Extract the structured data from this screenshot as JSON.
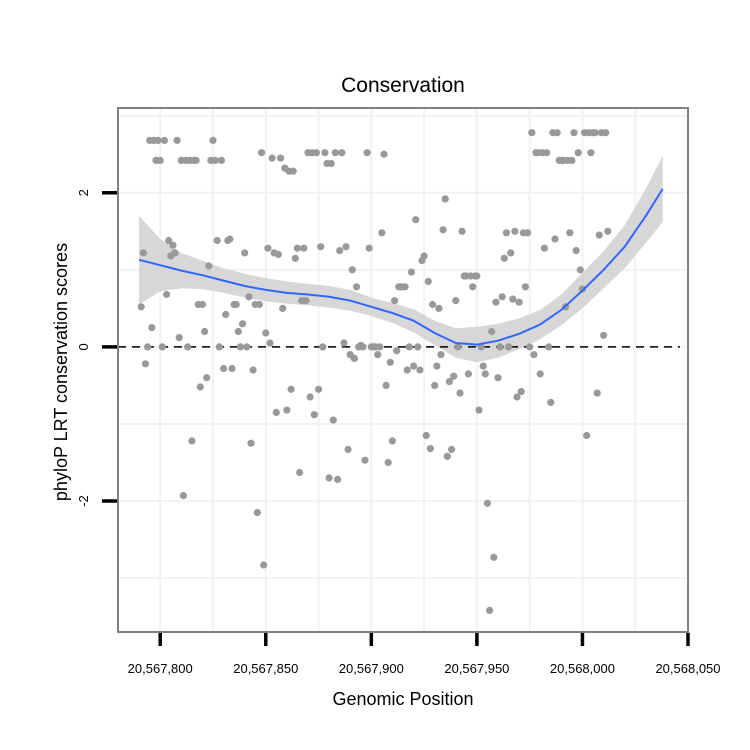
{
  "chart_data": {
    "type": "scatter",
    "title": "Conservation",
    "xlabel": "Genomic Position",
    "ylabel": "phyloP LRT conservation scores",
    "xlim": [
      20567780,
      20568050
    ],
    "ylim": [
      -3.7,
      3.1
    ],
    "x_ticks": [
      20567800,
      20567850,
      20567900,
      20567950,
      20568000,
      20568050
    ],
    "x_tick_labels": [
      "20,567,800",
      "20,567,850",
      "20,567,900",
      "20,567,950",
      "20,568,000",
      "20,568,050"
    ],
    "y_ticks": [
      -2,
      0,
      2
    ],
    "y_tick_labels": [
      "-2",
      "0",
      "2"
    ],
    "reference_line": {
      "y": 0,
      "style": "dashed"
    },
    "grid": true,
    "colors": {
      "points": "#999999",
      "smooth": "#3366ff",
      "band": "#d3d3d3",
      "grid": "#f2f2f2",
      "frame": "#808080"
    },
    "series": [
      {
        "type": "points",
        "points": [
          [
            20567791,
            0.52
          ],
          [
            20567792,
            1.22
          ],
          [
            20567793,
            -0.22
          ],
          [
            20567794,
            0.0
          ],
          [
            20567795,
            2.68
          ],
          [
            20567796,
            0.25
          ],
          [
            20567797,
            2.68
          ],
          [
            20567798,
            2.42
          ],
          [
            20567799,
            2.68
          ],
          [
            20567800,
            2.42
          ],
          [
            20567801,
            0.0
          ],
          [
            20567802,
            2.68
          ],
          [
            20567803,
            0.68
          ],
          [
            20567804,
            1.38
          ],
          [
            20567805,
            1.18
          ],
          [
            20567806,
            1.32
          ],
          [
            20567807,
            1.22
          ],
          [
            20567808,
            2.68
          ],
          [
            20567809,
            0.12
          ],
          [
            20567810,
            2.42
          ],
          [
            20567811,
            -1.93
          ],
          [
            20567812,
            2.42
          ],
          [
            20567813,
            0.0
          ],
          [
            20567814,
            2.42
          ],
          [
            20567815,
            -1.22
          ],
          [
            20567816,
            2.42
          ],
          [
            20567817,
            2.42
          ],
          [
            20567818,
            0.55
          ],
          [
            20567819,
            -0.52
          ],
          [
            20567820,
            0.55
          ],
          [
            20567821,
            0.2
          ],
          [
            20567822,
            -0.4
          ],
          [
            20567823,
            1.05
          ],
          [
            20567824,
            2.42
          ],
          [
            20567825,
            2.68
          ],
          [
            20567826,
            2.42
          ],
          [
            20567827,
            1.38
          ],
          [
            20567828,
            0.0
          ],
          [
            20567829,
            2.42
          ],
          [
            20567830,
            -0.28
          ],
          [
            20567831,
            0.42
          ],
          [
            20567832,
            1.38
          ],
          [
            20567833,
            1.4
          ],
          [
            20567834,
            -0.28
          ],
          [
            20567835,
            0.55
          ],
          [
            20567836,
            0.55
          ],
          [
            20567837,
            0.2
          ],
          [
            20567838,
            0.0
          ],
          [
            20567839,
            0.3
          ],
          [
            20567840,
            1.22
          ],
          [
            20567841,
            0.0
          ],
          [
            20567842,
            0.65
          ],
          [
            20567843,
            -1.25
          ],
          [
            20567844,
            -0.3
          ],
          [
            20567845,
            0.55
          ],
          [
            20567846,
            -2.15
          ],
          [
            20567847,
            0.55
          ],
          [
            20567848,
            2.52
          ],
          [
            20567849,
            -2.83
          ],
          [
            20567850,
            0.18
          ],
          [
            20567851,
            1.28
          ],
          [
            20567852,
            0.05
          ],
          [
            20567853,
            2.45
          ],
          [
            20567854,
            1.22
          ],
          [
            20567855,
            -0.85
          ],
          [
            20567856,
            1.2
          ],
          [
            20567857,
            2.45
          ],
          [
            20567858,
            0.5
          ],
          [
            20567859,
            2.32
          ],
          [
            20567860,
            -0.82
          ],
          [
            20567861,
            2.28
          ],
          [
            20567862,
            -0.55
          ],
          [
            20567863,
            2.28
          ],
          [
            20567864,
            1.15
          ],
          [
            20567865,
            1.28
          ],
          [
            20567866,
            -1.63
          ],
          [
            20567867,
            0.6
          ],
          [
            20567868,
            1.28
          ],
          [
            20567869,
            0.6
          ],
          [
            20567870,
            2.52
          ],
          [
            20567871,
            -0.65
          ],
          [
            20567872,
            2.52
          ],
          [
            20567873,
            -0.88
          ],
          [
            20567874,
            2.52
          ],
          [
            20567875,
            -0.55
          ],
          [
            20567876,
            1.3
          ],
          [
            20567877,
            0.0
          ],
          [
            20567878,
            2.52
          ],
          [
            20567879,
            2.38
          ],
          [
            20567880,
            -1.7
          ],
          [
            20567881,
            2.38
          ],
          [
            20567882,
            -0.95
          ],
          [
            20567883,
            2.52
          ],
          [
            20567884,
            -1.72
          ],
          [
            20567885,
            1.25
          ],
          [
            20567886,
            2.52
          ],
          [
            20567887,
            0.05
          ],
          [
            20567888,
            1.3
          ],
          [
            20567889,
            -1.33
          ],
          [
            20567890,
            -0.1
          ],
          [
            20567891,
            1.0
          ],
          [
            20567892,
            -0.15
          ],
          [
            20567893,
            0.78
          ],
          [
            20567894,
            0.0
          ],
          [
            20567895,
            0.02
          ],
          [
            20567896,
            0.0
          ],
          [
            20567897,
            -1.47
          ],
          [
            20567898,
            2.52
          ],
          [
            20567899,
            1.28
          ],
          [
            20567900,
            0.0
          ],
          [
            20567901,
            0.0
          ],
          [
            20567902,
            0.0
          ],
          [
            20567903,
            -0.1
          ],
          [
            20567904,
            0.0
          ],
          [
            20567905,
            1.48
          ],
          [
            20567906,
            2.5
          ],
          [
            20567907,
            -0.5
          ],
          [
            20567908,
            -1.5
          ],
          [
            20567909,
            -0.2
          ],
          [
            20567910,
            -1.22
          ],
          [
            20567911,
            0.6
          ],
          [
            20567912,
            -0.05
          ],
          [
            20567913,
            0.78
          ],
          [
            20567914,
            0.78
          ],
          [
            20567915,
            0.78
          ],
          [
            20567916,
            0.78
          ],
          [
            20567917,
            -0.3
          ],
          [
            20567918,
            0.0
          ],
          [
            20567919,
            0.97
          ],
          [
            20567920,
            -0.25
          ],
          [
            20567921,
            1.65
          ],
          [
            20567922,
            0.0
          ],
          [
            20567923,
            -0.3
          ],
          [
            20567924,
            1.12
          ],
          [
            20567925,
            1.18
          ],
          [
            20567926,
            -1.15
          ],
          [
            20567927,
            0.85
          ],
          [
            20567928,
            -1.32
          ],
          [
            20567929,
            0.55
          ],
          [
            20567930,
            -0.5
          ],
          [
            20567931,
            -0.25
          ],
          [
            20567932,
            0.5
          ],
          [
            20567933,
            -0.1
          ],
          [
            20567934,
            1.52
          ],
          [
            20567935,
            1.92
          ],
          [
            20567936,
            -1.42
          ],
          [
            20567937,
            -0.45
          ],
          [
            20567938,
            -1.33
          ],
          [
            20567939,
            -0.38
          ],
          [
            20567940,
            0.6
          ],
          [
            20567941,
            0.0
          ],
          [
            20567942,
            -0.6
          ],
          [
            20567943,
            1.5
          ],
          [
            20567944,
            0.92
          ],
          [
            20567945,
            0.92
          ],
          [
            20567946,
            -0.35
          ],
          [
            20567947,
            0.92
          ],
          [
            20567948,
            0.78
          ],
          [
            20567949,
            0.92
          ],
          [
            20567950,
            0.92
          ],
          [
            20567951,
            -0.82
          ],
          [
            20567952,
            0.0
          ],
          [
            20567953,
            -0.25
          ],
          [
            20567954,
            -0.35
          ],
          [
            20567955,
            -2.03
          ],
          [
            20567956,
            -3.42
          ],
          [
            20567957,
            0.2
          ],
          [
            20567958,
            -2.73
          ],
          [
            20567959,
            0.58
          ],
          [
            20567960,
            -0.4
          ],
          [
            20567961,
            0.0
          ],
          [
            20567962,
            0.65
          ],
          [
            20567963,
            1.15
          ],
          [
            20567964,
            1.48
          ],
          [
            20567965,
            0.0
          ],
          [
            20567966,
            1.22
          ],
          [
            20567967,
            0.62
          ],
          [
            20567968,
            1.5
          ],
          [
            20567969,
            -0.65
          ],
          [
            20567970,
            0.58
          ],
          [
            20567971,
            -0.58
          ],
          [
            20567972,
            1.48
          ],
          [
            20567973,
            0.78
          ],
          [
            20567974,
            1.48
          ],
          [
            20567975,
            0.0
          ],
          [
            20567976,
            2.78
          ],
          [
            20567977,
            -0.1
          ],
          [
            20567978,
            2.52
          ],
          [
            20567979,
            2.52
          ],
          [
            20567980,
            -0.35
          ],
          [
            20567981,
            2.52
          ],
          [
            20567982,
            1.28
          ],
          [
            20567983,
            2.52
          ],
          [
            20567984,
            0.0
          ],
          [
            20567985,
            -0.72
          ],
          [
            20567986,
            2.78
          ],
          [
            20567987,
            1.4
          ],
          [
            20567988,
            2.78
          ],
          [
            20567989,
            2.42
          ],
          [
            20567990,
            2.42
          ],
          [
            20567991,
            2.42
          ],
          [
            20567992,
            0.52
          ],
          [
            20567993,
            2.42
          ],
          [
            20567994,
            1.48
          ],
          [
            20567995,
            2.42
          ],
          [
            20567996,
            2.78
          ],
          [
            20567997,
            1.25
          ],
          [
            20567998,
            2.52
          ],
          [
            20567999,
            1.0
          ],
          [
            20568000,
            0.75
          ],
          [
            20568001,
            2.78
          ],
          [
            20568002,
            -1.15
          ],
          [
            20568003,
            2.78
          ],
          [
            20568004,
            2.52
          ],
          [
            20568005,
            2.78
          ],
          [
            20568006,
            2.78
          ],
          [
            20568007,
            -0.6
          ],
          [
            20568008,
            1.45
          ],
          [
            20568009,
            2.78
          ],
          [
            20568010,
            0.15
          ],
          [
            20568011,
            2.78
          ],
          [
            20568012,
            1.5
          ]
        ]
      },
      {
        "type": "smooth",
        "x": [
          20567790,
          20567800,
          20567810,
          20567820,
          20567830,
          20567840,
          20567850,
          20567860,
          20567870,
          20567880,
          20567890,
          20567900,
          20567910,
          20567920,
          20567930,
          20567940,
          20567950,
          20567960,
          20567970,
          20567980,
          20567990,
          20568000,
          20568010,
          20568020,
          20568030,
          20568038
        ],
        "y": [
          1.13,
          1.06,
          0.99,
          0.93,
          0.86,
          0.79,
          0.74,
          0.7,
          0.68,
          0.65,
          0.6,
          0.52,
          0.44,
          0.34,
          0.18,
          0.05,
          0.03,
          0.08,
          0.17,
          0.29,
          0.48,
          0.73,
          1.0,
          1.3,
          1.7,
          2.05
        ],
        "ymin": [
          0.55,
          0.72,
          0.76,
          0.75,
          0.7,
          0.64,
          0.59,
          0.56,
          0.54,
          0.51,
          0.47,
          0.4,
          0.31,
          0.19,
          0.02,
          -0.14,
          -0.2,
          -0.14,
          -0.03,
          0.1,
          0.28,
          0.5,
          0.76,
          1.02,
          1.35,
          1.62
        ],
        "ymax": [
          1.7,
          1.4,
          1.22,
          1.12,
          1.02,
          0.95,
          0.89,
          0.85,
          0.82,
          0.79,
          0.74,
          0.64,
          0.57,
          0.49,
          0.34,
          0.24,
          0.26,
          0.3,
          0.37,
          0.48,
          0.68,
          0.96,
          1.24,
          1.58,
          2.05,
          2.48
        ]
      }
    ]
  }
}
